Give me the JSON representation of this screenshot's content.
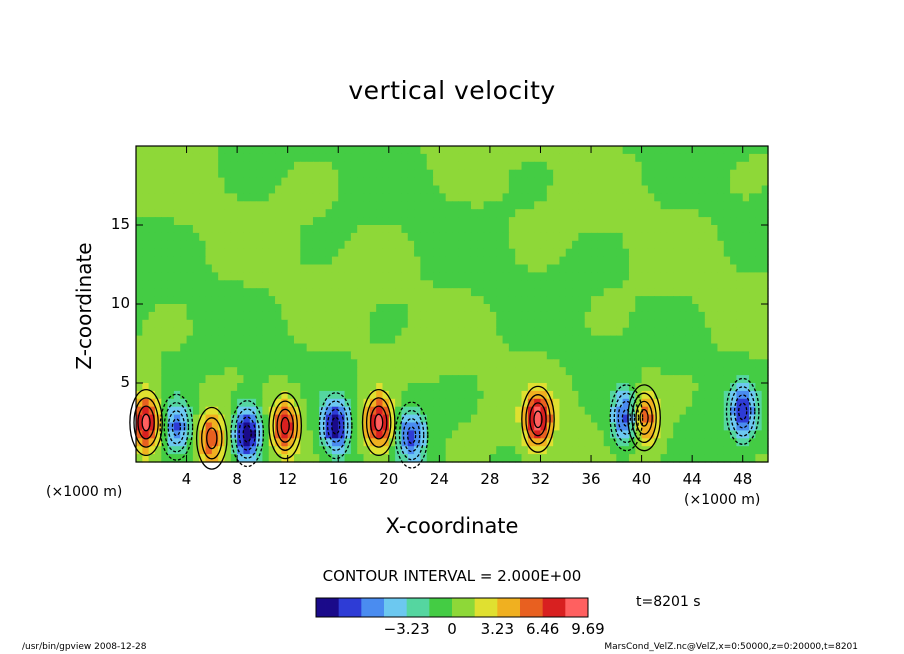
{
  "chart_data": {
    "type": "heatmap",
    "title": "vertical velocity",
    "xlabel": "X-coordinate",
    "ylabel": "Z-coordinate",
    "x_unit_left": "(×1000 m)",
    "x_unit_right": "(×1000 m)",
    "xlim": [
      0,
      50
    ],
    "ylim": [
      0,
      20
    ],
    "x_ticks": [
      "4",
      "8",
      "12",
      "16",
      "20",
      "24",
      "28",
      "32",
      "36",
      "40",
      "44",
      "48"
    ],
    "y_ticks": [
      "5",
      "10",
      "15"
    ],
    "contour_interval_label": "CONTOUR INTERVAL = 2.000E+00",
    "colorbar": {
      "range": [
        -9.69,
        9.69
      ],
      "tick_labels": [
        "−3.23",
        "0",
        "3.23",
        "6.46",
        "9.69"
      ],
      "tick_values": [
        -3.23,
        0,
        3.23,
        6.46,
        9.69
      ],
      "colormap": [
        "#1a0a8a",
        "#2e3cd6",
        "#4a8cf0",
        "#6cc8f0",
        "#55d6a0",
        "#44cc44",
        "#8ed838",
        "#e0e030",
        "#f0b020",
        "#e86020",
        "#d82020",
        "#ff6060"
      ]
    },
    "updraft_cells": [
      {
        "x": 0.8,
        "z": 2.5,
        "w": 9
      },
      {
        "x": 6.0,
        "z": 1.5,
        "w": 6
      },
      {
        "x": 11.8,
        "z": 2.3,
        "w": 8
      },
      {
        "x": 19.2,
        "z": 2.5,
        "w": 9
      },
      {
        "x": 31.8,
        "z": 2.7,
        "w": 9
      },
      {
        "x": 40.2,
        "z": 2.8,
        "w": 7
      }
    ],
    "downdraft_cells": [
      {
        "x": 3.2,
        "z": 2.2,
        "w": -7
      },
      {
        "x": 8.8,
        "z": 1.8,
        "w": -9.5
      },
      {
        "x": 15.8,
        "z": 2.3,
        "w": -9
      },
      {
        "x": 21.8,
        "z": 1.7,
        "w": -7
      },
      {
        "x": 38.8,
        "z": 2.8,
        "w": -8
      },
      {
        "x": 48.0,
        "z": 3.2,
        "w": -7
      }
    ],
    "time_label": "t=8201 s"
  },
  "footer": {
    "left": "/usr/bin/gpview   2008-12-28",
    "right": "MarsCond_VelZ.nc@VelZ,x=0:50000,z=0:20000,t=8201"
  }
}
